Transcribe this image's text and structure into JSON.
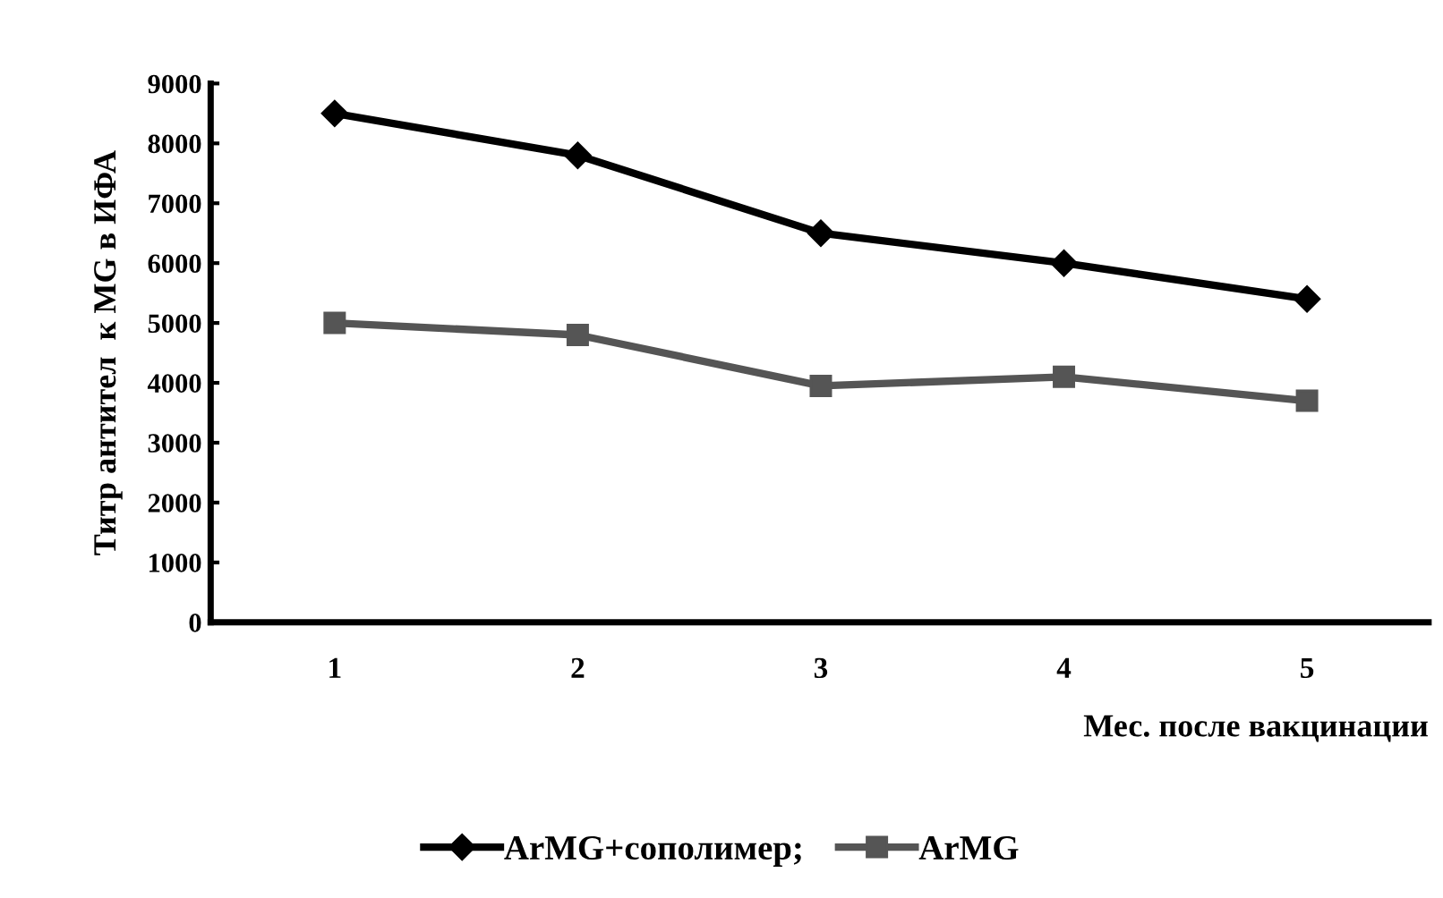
{
  "chart_data": {
    "type": "line",
    "xlabel": "Мес. после вакцинации",
    "ylabel": "Титр антител  к MG в ИФА",
    "categories": [
      "1",
      "2",
      "3",
      "4",
      "5"
    ],
    "series": [
      {
        "name": "ArMG+сополимер;",
        "color": "#000000",
        "marker": "diamond",
        "values": [
          8500,
          7800,
          6500,
          6000,
          5400
        ]
      },
      {
        "name": "ArMG",
        "color": "#555555",
        "marker": "square",
        "values": [
          5000,
          4800,
          3950,
          4100,
          3700
        ]
      }
    ],
    "ylim": [
      0,
      9000
    ],
    "yticks": [
      0,
      1000,
      2000,
      3000,
      4000,
      5000,
      6000,
      7000,
      8000,
      9000
    ],
    "grid": false,
    "legend": "bottom",
    "line_style": "solid"
  }
}
